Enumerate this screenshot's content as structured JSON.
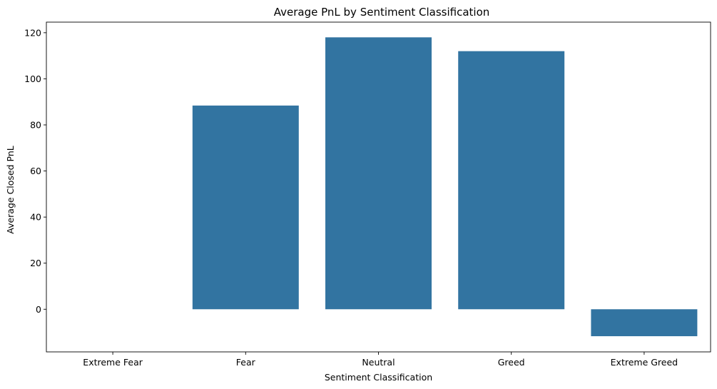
{
  "chart_data": {
    "type": "bar",
    "title": "Average PnL by Sentiment Classification",
    "xlabel": "Sentiment Classification",
    "ylabel": "Average Closed PnL",
    "categories": [
      "Extreme Fear",
      "Fear",
      "Neutral",
      "Greed",
      "Extreme Greed"
    ],
    "values": [
      0,
      88.4,
      118.0,
      112.0,
      -11.7
    ],
    "ylim": [
      -18.5,
      124.6
    ],
    "yticks": [
      0,
      20,
      40,
      60,
      80,
      100,
      120
    ],
    "bar_color": "#3274a1",
    "grid": false,
    "legend": "none"
  }
}
